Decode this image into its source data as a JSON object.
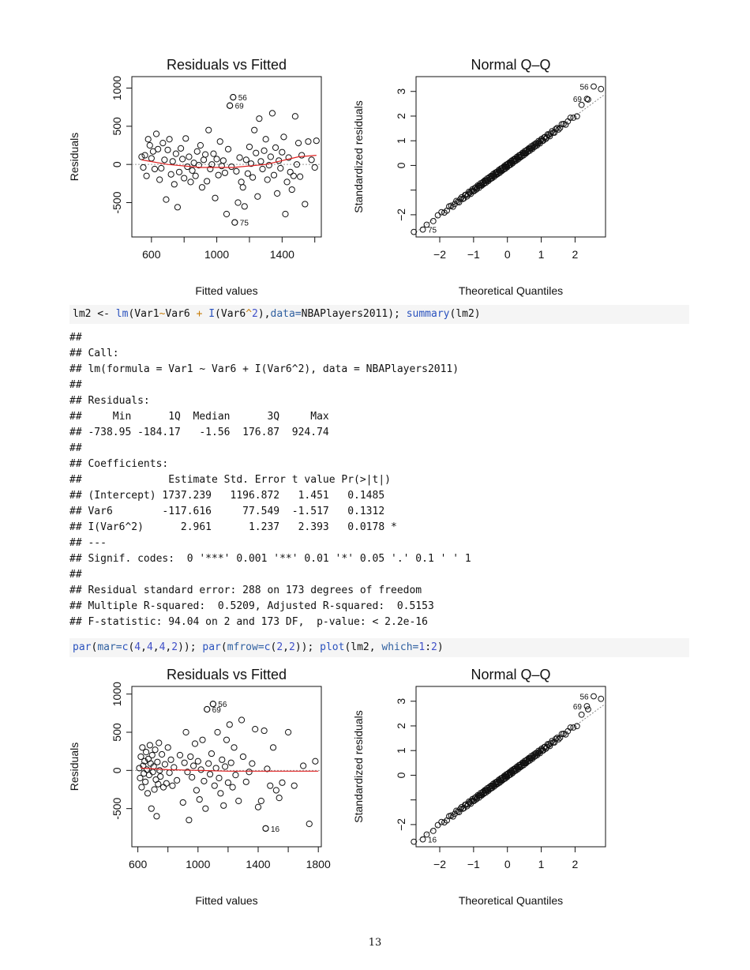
{
  "plots": {
    "residuals_title": "Residuals vs Fitted",
    "qq_title": "Normal Q–Q",
    "residuals_ylabel": "Residuals",
    "residuals_xlabel": "Fitted values",
    "qq_ylabel": "Standardized residuals",
    "qq_xlabel": "Theoretical Quantiles"
  },
  "chart_data": [
    {
      "type": "scatter",
      "title": "Residuals vs Fitted",
      "xlabel": "Fitted values",
      "ylabel": "Residuals",
      "xlim": [
        480,
        1640
      ],
      "ylim": [
        -950,
        1150
      ],
      "xticks": [
        600,
        1000,
        1400
      ],
      "yticks": [
        -500,
        0,
        500,
        1000
      ],
      "x_tick_labels": [
        "600",
        "1000",
        "1400"
      ],
      "y_tick_labels": [
        "-500",
        "0",
        "500",
        "1000"
      ],
      "labeled_points": [
        {
          "label": "56",
          "x": 1100,
          "y": 880
        },
        {
          "label": "69",
          "x": 1080,
          "y": 770
        },
        {
          "label": "75",
          "x": 1110,
          "y": -760
        }
      ],
      "smoother": [
        [
          540,
          60
        ],
        [
          700,
          0
        ],
        [
          900,
          -40
        ],
        [
          1100,
          -40
        ],
        [
          1300,
          0
        ],
        [
          1500,
          100
        ],
        [
          1610,
          120
        ]
      ],
      "points": [
        [
          540,
          100
        ],
        [
          550,
          -40
        ],
        [
          560,
          120
        ],
        [
          570,
          -150
        ],
        [
          580,
          330
        ],
        [
          590,
          250
        ],
        [
          600,
          80
        ],
        [
          610,
          170
        ],
        [
          620,
          -60
        ],
        [
          630,
          400
        ],
        [
          640,
          200
        ],
        [
          650,
          -200
        ],
        [
          660,
          -50
        ],
        [
          670,
          280
        ],
        [
          680,
          60
        ],
        [
          690,
          -460
        ],
        [
          700,
          190
        ],
        [
          710,
          330
        ],
        [
          720,
          -130
        ],
        [
          730,
          40
        ],
        [
          740,
          -260
        ],
        [
          750,
          140
        ],
        [
          760,
          -560
        ],
        [
          770,
          -100
        ],
        [
          780,
          210
        ],
        [
          790,
          70
        ],
        [
          800,
          -180
        ],
        [
          810,
          340
        ],
        [
          820,
          -30
        ],
        [
          830,
          100
        ],
        [
          840,
          -230
        ],
        [
          850,
          -80
        ],
        [
          860,
          20
        ],
        [
          870,
          -150
        ],
        [
          880,
          170
        ],
        [
          890,
          -10
        ],
        [
          900,
          250
        ],
        [
          910,
          -300
        ],
        [
          920,
          60
        ],
        [
          930,
          130
        ],
        [
          940,
          -220
        ],
        [
          950,
          450
        ],
        [
          960,
          -60
        ],
        [
          970,
          0
        ],
        [
          980,
          140
        ],
        [
          990,
          -440
        ],
        [
          1000,
          70
        ],
        [
          1010,
          -140
        ],
        [
          1020,
          300
        ],
        [
          1030,
          -20
        ],
        [
          1040,
          50
        ],
        [
          1050,
          -110
        ],
        [
          1060,
          -650
        ],
        [
          1070,
          200
        ],
        [
          1080,
          770
        ],
        [
          1090,
          -30
        ],
        [
          1100,
          880
        ],
        [
          1110,
          -760
        ],
        [
          1120,
          -90
        ],
        [
          1130,
          -500
        ],
        [
          1140,
          90
        ],
        [
          1150,
          -230
        ],
        [
          1160,
          -300
        ],
        [
          1170,
          -550
        ],
        [
          1180,
          60
        ],
        [
          1190,
          -120
        ],
        [
          1200,
          230
        ],
        [
          1210,
          10
        ],
        [
          1220,
          -170
        ],
        [
          1230,
          450
        ],
        [
          1240,
          150
        ],
        [
          1250,
          -420
        ],
        [
          1260,
          600
        ],
        [
          1270,
          40
        ],
        [
          1280,
          -60
        ],
        [
          1290,
          180
        ],
        [
          1300,
          330
        ],
        [
          1310,
          -200
        ],
        [
          1320,
          -10
        ],
        [
          1330,
          100
        ],
        [
          1340,
          670
        ],
        [
          1350,
          -140
        ],
        [
          1360,
          220
        ],
        [
          1370,
          -380
        ],
        [
          1380,
          50
        ],
        [
          1390,
          -50
        ],
        [
          1400,
          160
        ],
        [
          1410,
          360
        ],
        [
          1420,
          -650
        ],
        [
          1430,
          -230
        ],
        [
          1440,
          90
        ],
        [
          1450,
          -100
        ],
        [
          1460,
          -330
        ],
        [
          1470,
          -150
        ],
        [
          1480,
          630
        ],
        [
          1490,
          0
        ],
        [
          1500,
          280
        ],
        [
          1510,
          -160
        ],
        [
          1520,
          120
        ],
        [
          1540,
          -520
        ],
        [
          1560,
          300
        ],
        [
          1580,
          60
        ],
        [
          1600,
          -40
        ],
        [
          1610,
          310
        ]
      ]
    },
    {
      "type": "scatter",
      "title": "Normal Q–Q",
      "xlabel": "Theoretical Quantiles",
      "ylabel": "Standardized residuals",
      "xlim": [
        -2.7,
        2.9
      ],
      "ylim": [
        -2.9,
        3.6
      ],
      "xticks": [
        -2,
        -1,
        0,
        1,
        2
      ],
      "yticks": [
        -2,
        0,
        1,
        2,
        3
      ],
      "x_tick_labels": [
        "−2",
        "−1",
        "0",
        "1",
        "2"
      ],
      "y_tick_labels": [
        "−2",
        "0",
        "1",
        "2",
        "3"
      ],
      "labeled_points": [
        {
          "label": "56",
          "x": 2.55,
          "y": 3.2
        },
        {
          "label": "69",
          "x": 2.35,
          "y": 2.7
        },
        {
          "label": "75",
          "x": -2.5,
          "y": -2.6
        }
      ],
      "n_points": 176
    },
    {
      "type": "scatter",
      "title": "Residuals vs Fitted",
      "xlabel": "Fitted values",
      "ylabel": "Residuals",
      "xlim": [
        560,
        1820
      ],
      "ylim": [
        -1000,
        1100
      ],
      "xticks": [
        600,
        1000,
        1400,
        1800
      ],
      "yticks": [
        -500,
        0,
        500,
        1000
      ],
      "x_tick_labels": [
        "600",
        "1000",
        "1400",
        "1800"
      ],
      "y_tick_labels": [
        "-500",
        "0",
        "500",
        "1000"
      ],
      "labeled_points": [
        {
          "label": "56",
          "x": 1100,
          "y": 870
        },
        {
          "label": "69",
          "x": 1060,
          "y": 800
        },
        {
          "label": "16",
          "x": 1450,
          "y": -760
        }
      ],
      "smoother": [
        [
          620,
          30
        ],
        [
          800,
          10
        ],
        [
          1000,
          0
        ],
        [
          1200,
          -10
        ],
        [
          1400,
          -10
        ],
        [
          1600,
          -10
        ],
        [
          1800,
          -10
        ]
      ],
      "points": [
        [
          610,
          30
        ],
        [
          615,
          -100
        ],
        [
          620,
          180
        ],
        [
          625,
          -220
        ],
        [
          630,
          300
        ],
        [
          635,
          60
        ],
        [
          640,
          -40
        ],
        [
          645,
          120
        ],
        [
          650,
          -150
        ],
        [
          655,
          240
        ],
        [
          660,
          10
        ],
        [
          665,
          -300
        ],
        [
          670,
          150
        ],
        [
          675,
          -60
        ],
        [
          680,
          330
        ],
        [
          685,
          90
        ],
        [
          690,
          -500
        ],
        [
          695,
          200
        ],
        [
          700,
          -20
        ],
        [
          705,
          50
        ],
        [
          710,
          -250
        ],
        [
          715,
          270
        ],
        [
          720,
          -120
        ],
        [
          725,
          -600
        ],
        [
          730,
          110
        ],
        [
          735,
          -180
        ],
        [
          740,
          360
        ],
        [
          745,
          0
        ],
        [
          750,
          -80
        ],
        [
          760,
          210
        ],
        [
          770,
          -220
        ],
        [
          780,
          80
        ],
        [
          790,
          -170
        ],
        [
          800,
          300
        ],
        [
          810,
          -30
        ],
        [
          820,
          140
        ],
        [
          830,
          -200
        ],
        [
          840,
          40
        ],
        [
          860,
          -130
        ],
        [
          880,
          200
        ],
        [
          900,
          -420
        ],
        [
          910,
          100
        ],
        [
          920,
          500
        ],
        [
          930,
          -20
        ],
        [
          940,
          -650
        ],
        [
          950,
          180
        ],
        [
          960,
          -90
        ],
        [
          970,
          60
        ],
        [
          980,
          350
        ],
        [
          990,
          -260
        ],
        [
          1000,
          120
        ],
        [
          1010,
          -380
        ],
        [
          1020,
          10
        ],
        [
          1030,
          400
        ],
        [
          1040,
          -140
        ],
        [
          1050,
          -500
        ],
        [
          1060,
          800
        ],
        [
          1070,
          90
        ],
        [
          1080,
          -50
        ],
        [
          1090,
          220
        ],
        [
          1100,
          870
        ],
        [
          1110,
          -200
        ],
        [
          1120,
          30
        ],
        [
          1130,
          500
        ],
        [
          1140,
          -100
        ],
        [
          1150,
          -300
        ],
        [
          1160,
          140
        ],
        [
          1170,
          -460
        ],
        [
          1180,
          50
        ],
        [
          1190,
          400
        ],
        [
          1200,
          -160
        ],
        [
          1210,
          600
        ],
        [
          1220,
          100
        ],
        [
          1230,
          -220
        ],
        [
          1240,
          300
        ],
        [
          1250,
          -60
        ],
        [
          1270,
          -400
        ],
        [
          1290,
          660
        ],
        [
          1300,
          180
        ],
        [
          1320,
          -150
        ],
        [
          1340,
          -20
        ],
        [
          1360,
          90
        ],
        [
          1380,
          540
        ],
        [
          1400,
          -480
        ],
        [
          1420,
          -400
        ],
        [
          1440,
          520
        ],
        [
          1450,
          -760
        ],
        [
          1460,
          20
        ],
        [
          1480,
          -200
        ],
        [
          1500,
          300
        ],
        [
          1520,
          -260
        ],
        [
          1540,
          -360
        ],
        [
          1560,
          -160
        ],
        [
          1600,
          500
        ],
        [
          1640,
          -200
        ],
        [
          1700,
          60
        ],
        [
          1740,
          -700
        ],
        [
          1780,
          120
        ]
      ]
    },
    {
      "type": "scatter",
      "title": "Normal Q–Q",
      "xlabel": "Theoretical Quantiles",
      "ylabel": "Standardized residuals",
      "xlim": [
        -2.7,
        2.9
      ],
      "ylim": [
        -2.9,
        3.6
      ],
      "xticks": [
        -2,
        -1,
        0,
        1,
        2
      ],
      "yticks": [
        -2,
        0,
        1,
        2,
        3
      ],
      "x_tick_labels": [
        "−2",
        "−1",
        "0",
        "1",
        "2"
      ],
      "y_tick_labels": [
        "−2",
        "0",
        "1",
        "2",
        "3"
      ],
      "labeled_points": [
        {
          "label": "56",
          "x": 2.55,
          "y": 3.2
        },
        {
          "label": "69",
          "x": 2.35,
          "y": 2.8
        },
        {
          "label": "16",
          "x": -2.5,
          "y": -2.6
        }
      ],
      "n_points": 176
    }
  ],
  "code": {
    "line1": "lm2 <- lm(Var1~Var6 + I(Var6^2),data=NBAPlayers2011); summary(lm2)",
    "line2": "par(mar=c(4,4,4,2)); par(mfrow=c(2,2)); plot(lm2, which=1:2)"
  },
  "output": [
    "##",
    "## Call:",
    "## lm(formula = Var1 ~ Var6 + I(Var6^2), data = NBAPlayers2011)",
    "##",
    "## Residuals:",
    "##     Min      1Q  Median      3Q     Max",
    "## -738.95 -184.17   -1.56  176.87  924.74",
    "##",
    "## Coefficients:",
    "##              Estimate Std. Error t value Pr(>|t|)",
    "## (Intercept) 1737.239   1196.872   1.451   0.1485",
    "## Var6        -117.616     77.549  -1.517   0.1312",
    "## I(Var6^2)      2.961      1.237   2.393   0.0178 *",
    "## ---",
    "## Signif. codes:  0 '***' 0.001 '**' 0.01 '*' 0.05 '.' 0.1 ' ' 1",
    "##",
    "## Residual standard error: 288 on 173 degrees of freedom",
    "## Multiple R-squared:  0.5209, Adjusted R-squared:  0.5153",
    "## F-statistic: 94.04 on 2 and 173 DF,  p-value: < 2.2e-16"
  ],
  "page_number": "13"
}
